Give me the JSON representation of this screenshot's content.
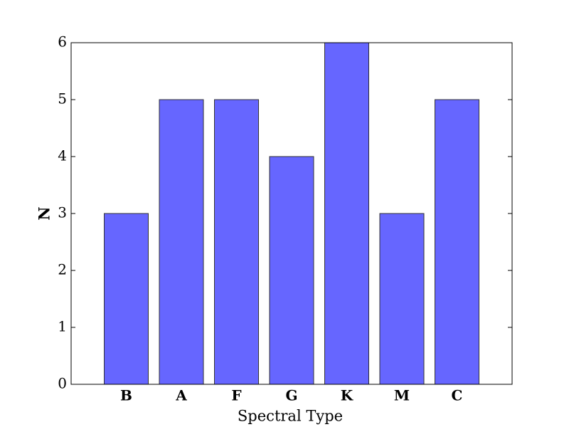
{
  "chart_data": {
    "type": "bar",
    "categories": [
      "B",
      "A",
      "F",
      "G",
      "K",
      "M",
      "C"
    ],
    "values": [
      3,
      5,
      5,
      4,
      6,
      3,
      5
    ],
    "color": "#6666ff",
    "xlabel": "Spectral Type",
    "ylabel": "N",
    "ylim": [
      0,
      6
    ],
    "yticks": [
      0,
      1,
      2,
      3,
      4,
      5,
      6
    ],
    "grid": false
  }
}
